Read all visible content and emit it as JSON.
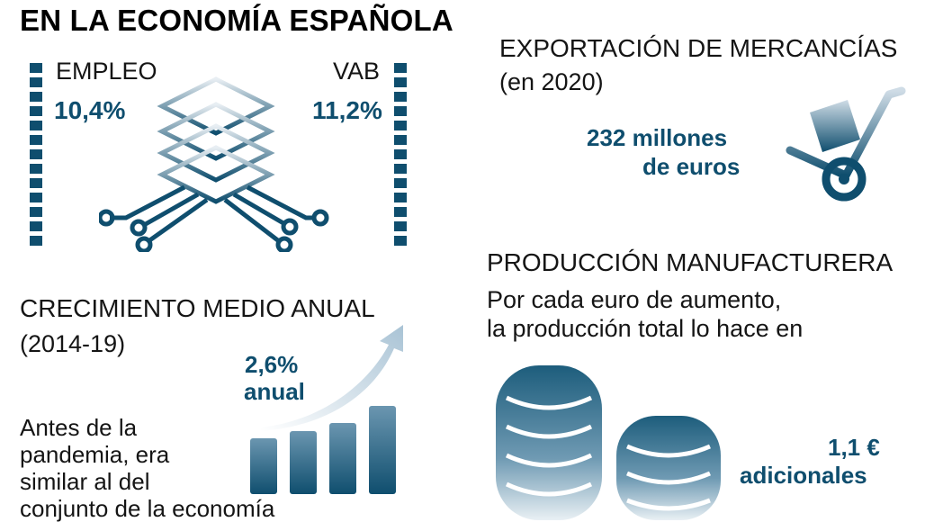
{
  "title": "EN LA ECONOMÍA ESPAÑOLA",
  "empleo": {
    "label": "EMPLEO",
    "value": "10,4%"
  },
  "vab": {
    "label": "VAB",
    "value": "11,2%"
  },
  "exportacion": {
    "heading": "EXPORTACIÓN DE MERCANCÍAS",
    "subheading": "(en 2020)",
    "value_line1": "232 millones",
    "value_line2": "de euros"
  },
  "crecimiento": {
    "heading": "CRECIMIENTO MEDIO ANUAL",
    "subheading": "(2014-19)",
    "value_line1": "2,6%",
    "value_line2": "anual",
    "text_lines": [
      "Antes de la",
      "pandemia, era",
      "similar al del",
      "conjunto de la economía"
    ]
  },
  "produccion": {
    "heading": "PRODUCCIÓN MANUFACTURERA",
    "text_line1": "Por cada euro de aumento,",
    "text_line2": "la producción total lo hace en",
    "value_line1": "1,1 €",
    "value_line2": "adicionales"
  },
  "colors": {
    "accent": "#0f4e6e",
    "light": "#dde7ee"
  },
  "icons": [
    "chip-icon",
    "hand-truck-icon",
    "growth-bars-icon",
    "coin-stack-icon"
  ]
}
